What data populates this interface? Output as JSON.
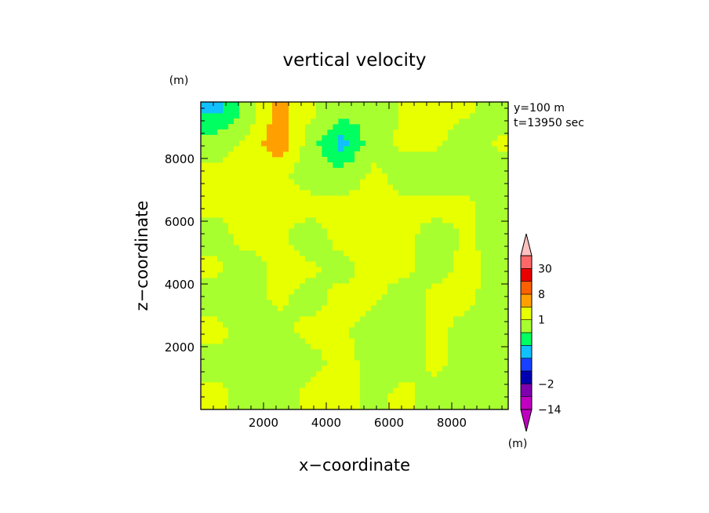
{
  "chart_data": {
    "type": "heatmap",
    "title": "vertical velocity",
    "xlabel": "x−coordinate",
    "ylabel": "z−coordinate",
    "y_unit": "(m)",
    "annotation_lines": [
      "y=100 m",
      "t=13950 sec"
    ],
    "xlim": [
      0,
      9800
    ],
    "ylim": [
      0,
      9800
    ],
    "x_ticks": [
      2000,
      4000,
      6000,
      8000
    ],
    "y_ticks": [
      2000,
      4000,
      6000,
      8000
    ],
    "x_tick_labels": [
      "2000",
      "4000",
      "6000",
      "8000"
    ],
    "y_tick_labels": [
      "2000",
      "4000",
      "6000",
      "8000"
    ],
    "colorbar": {
      "unit": "(m)",
      "labels": [
        "30",
        "8",
        "1",
        "−2",
        "−14"
      ],
      "levels_bottom_to_top": [
        -30,
        -14,
        -8,
        -2,
        -1,
        -0.5,
        0,
        0.5,
        1,
        2,
        8,
        14,
        30
      ],
      "colors_bottom_to_top": [
        "#c000c0",
        "#c000c0",
        "#8000b0",
        "#0000b0",
        "#1840ff",
        "#10c0ff",
        "#00ff60",
        "#a8ff30",
        "#e8ff00",
        "#ffa000",
        "#ff6000",
        "#e80000",
        "#ff6868",
        "#ffc0c0"
      ],
      "label_levels": [
        30,
        8,
        1,
        -2,
        -14
      ]
    },
    "field": {
      "x": [
        500,
        1500,
        2500,
        3500,
        4500,
        5500,
        6500,
        7500,
        8500,
        9500
      ],
      "z": [
        500,
        1500,
        2500,
        3500,
        4500,
        5500,
        6500,
        7500,
        8500,
        9500
      ],
      "w_rows_bottom_to_top": [
        [
          0.7,
          0.2,
          0.2,
          0.7,
          0.7,
          0.3,
          0.7,
          0.2,
          0.3,
          0.2
        ],
        [
          0.2,
          0.3,
          0.2,
          0.3,
          0.7,
          0.3,
          0.2,
          0.7,
          0.2,
          0.3
        ],
        [
          0.7,
          0.2,
          0.3,
          0.7,
          0.6,
          0.2,
          0.3,
          0.6,
          0.3,
          0.2
        ],
        [
          0.2,
          0.3,
          0.6,
          0.3,
          0.7,
          0.6,
          0.2,
          0.7,
          0.6,
          0.2
        ],
        [
          0.6,
          0.2,
          0.7,
          0.6,
          0.3,
          0.7,
          0.6,
          0.3,
          0.7,
          0.3
        ],
        [
          0.3,
          0.7,
          0.6,
          0.2,
          0.7,
          0.6,
          0.7,
          0.2,
          0.6,
          0.2
        ],
        [
          0.6,
          0.6,
          0.7,
          0.7,
          0.6,
          0.7,
          0.6,
          0.7,
          0.6,
          0.3
        ],
        [
          0.6,
          0.7,
          0.6,
          0.2,
          0.2,
          0.6,
          0.3,
          0.2,
          0.2,
          0.2
        ],
        [
          0.3,
          0.6,
          1.4,
          0.2,
          -0.7,
          0.3,
          0.6,
          0.6,
          0.2,
          0.6
        ],
        [
          -0.6,
          0.2,
          1.2,
          0.6,
          0.2,
          0.2,
          0.6,
          0.6,
          0.6,
          0.2
        ]
      ]
    }
  }
}
